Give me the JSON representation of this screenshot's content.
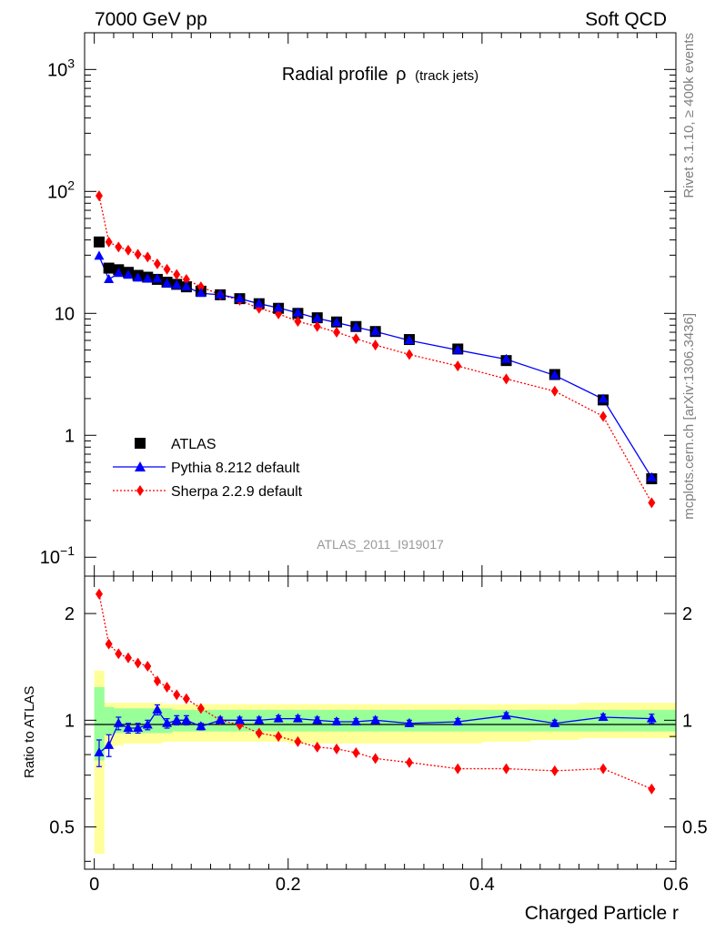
{
  "header": {
    "energy_label": "7000 GeV pp",
    "category_label": "Soft QCD"
  },
  "side_text": {
    "rivet": "Rivet 3.1.10, ≥ 400k events",
    "source": "mcplots.cern.ch [arXiv:1306.3436]"
  },
  "colors": {
    "atlas": "#000000",
    "pythia": "#0000ff",
    "sherpa": "#ff0000",
    "band_stat": "#99ff99",
    "band_total": "#ffff99",
    "analysis_tag": "#999999"
  },
  "chart_data": [
    {
      "type": "line",
      "title": "Radial profile",
      "title_symbol": "ρ",
      "title_suffix": "(track jets)",
      "analysis_tag": "ATLAS_2011_I919017",
      "yscale": "log",
      "xlim": [
        -0.01,
        0.6
      ],
      "ylim": [
        0.07,
        2000
      ],
      "y_ticks": [
        {
          "value": 0.1,
          "base": "10",
          "exp": "−1"
        },
        {
          "value": 1,
          "base": "1",
          "exp": ""
        },
        {
          "value": 10,
          "base": "10",
          "exp": ""
        },
        {
          "value": 100,
          "base": "10",
          "exp": "2"
        },
        {
          "value": 1000,
          "base": "10",
          "exp": "3"
        }
      ],
      "legend_position": "lower-left",
      "x": [
        0.005,
        0.015,
        0.025,
        0.035,
        0.045,
        0.055,
        0.065,
        0.075,
        0.085,
        0.095,
        0.11,
        0.13,
        0.15,
        0.17,
        0.19,
        0.21,
        0.23,
        0.25,
        0.27,
        0.29,
        0.325,
        0.375,
        0.425,
        0.475,
        0.525,
        0.575
      ],
      "series": [
        {
          "name": "ATLAS",
          "marker": "square",
          "values": [
            38.5,
            23.5,
            22.8,
            21.7,
            20.5,
            19.8,
            19.0,
            18.0,
            17.3,
            16.5,
            15.2,
            14.2,
            13.2,
            12.0,
            11.0,
            10.0,
            9.2,
            8.5,
            7.8,
            7.1,
            6.1,
            5.1,
            4.1,
            3.15,
            1.95,
            0.44
          ]
        },
        {
          "name": "Pythia 8.212 default",
          "marker": "triangle",
          "values": [
            29.5,
            19.0,
            21.3,
            20.6,
            19.5,
            19.2,
            19.2,
            17.5,
            17.0,
            16.5,
            14.6,
            14.2,
            13.2,
            12.0,
            11.1,
            10.1,
            9.1,
            8.4,
            7.7,
            7.1,
            6.0,
            5.0,
            4.2,
            3.1,
            1.98,
            0.45
          ]
        },
        {
          "name": "Sherpa 2.2.9 default",
          "marker": "diamond",
          "values": [
            92.0,
            38.5,
            35.0,
            33.0,
            30.5,
            29.0,
            25.5,
            23.0,
            20.8,
            19.0,
            16.5,
            14.2,
            12.8,
            11.0,
            9.9,
            8.6,
            7.8,
            7.0,
            6.2,
            5.5,
            4.6,
            3.7,
            2.9,
            2.3,
            1.43,
            0.28
          ]
        }
      ]
    },
    {
      "type": "line",
      "ylabel": "Ratio to ATLAS",
      "xlabel": "Charged Particle r",
      "yscale": "log",
      "xlim": [
        -0.01,
        0.6
      ],
      "ylim": [
        0.38,
        2.55
      ],
      "y_ticks": [
        0.5,
        1,
        2
      ],
      "y_tick_labels": [
        "0.5",
        "1",
        "2"
      ],
      "x_ticks": [
        0,
        0.2,
        0.4,
        0.6
      ],
      "x_tick_labels": [
        "0",
        "0.2",
        "0.4",
        "0.6"
      ],
      "bin_edges": [
        0.0,
        0.01,
        0.02,
        0.03,
        0.04,
        0.05,
        0.06,
        0.07,
        0.08,
        0.09,
        0.1,
        0.12,
        0.14,
        0.16,
        0.18,
        0.2,
        0.22,
        0.24,
        0.26,
        0.28,
        0.3,
        0.35,
        0.4,
        0.45,
        0.5,
        0.55,
        0.6
      ],
      "stat_band": [
        [
          0.77,
          1.24
        ],
        [
          0.91,
          1.09
        ],
        [
          0.92,
          1.08
        ],
        [
          0.92,
          1.08
        ],
        [
          0.92,
          1.08
        ],
        [
          0.92,
          1.08
        ],
        [
          0.92,
          1.08
        ],
        [
          0.92,
          1.08
        ],
        [
          0.93,
          1.07
        ],
        [
          0.93,
          1.07
        ],
        [
          0.93,
          1.07
        ],
        [
          0.93,
          1.07
        ],
        [
          0.93,
          1.07
        ],
        [
          0.93,
          1.07
        ],
        [
          0.93,
          1.07
        ],
        [
          0.93,
          1.07
        ],
        [
          0.93,
          1.07
        ],
        [
          0.93,
          1.07
        ],
        [
          0.93,
          1.07
        ],
        [
          0.93,
          1.07
        ],
        [
          0.93,
          1.07
        ],
        [
          0.93,
          1.07
        ],
        [
          0.93,
          1.07
        ],
        [
          0.93,
          1.07
        ],
        [
          0.93,
          1.07
        ],
        [
          0.93,
          1.07
        ]
      ],
      "total_band": [
        [
          0.42,
          1.38
        ],
        [
          0.84,
          1.12
        ],
        [
          0.85,
          1.12
        ],
        [
          0.86,
          1.12
        ],
        [
          0.86,
          1.12
        ],
        [
          0.86,
          1.12
        ],
        [
          0.86,
          1.12
        ],
        [
          0.87,
          1.11
        ],
        [
          0.87,
          1.11
        ],
        [
          0.87,
          1.11
        ],
        [
          0.87,
          1.11
        ],
        [
          0.87,
          1.11
        ],
        [
          0.87,
          1.11
        ],
        [
          0.87,
          1.11
        ],
        [
          0.87,
          1.11
        ],
        [
          0.86,
          1.11
        ],
        [
          0.86,
          1.11
        ],
        [
          0.86,
          1.11
        ],
        [
          0.86,
          1.11
        ],
        [
          0.86,
          1.11
        ],
        [
          0.86,
          1.11
        ],
        [
          0.86,
          1.11
        ],
        [
          0.87,
          1.11
        ],
        [
          0.88,
          1.11
        ],
        [
          0.89,
          1.12
        ],
        [
          0.89,
          1.12
        ]
      ],
      "series": [
        {
          "name": "Pythia 8.212 default",
          "marker": "triangle",
          "values": [
            0.81,
            0.85,
            0.98,
            0.95,
            0.95,
            0.97,
            1.07,
            0.98,
            1.0,
            1.0,
            0.96,
            1.0,
            1.0,
            1.0,
            1.01,
            1.01,
            1.0,
            0.99,
            0.99,
            1.0,
            0.98,
            0.99,
            1.03,
            0.98,
            1.02,
            1.01
          ],
          "errors": [
            0.07,
            0.06,
            0.04,
            0.03,
            0.03,
            0.03,
            0.035,
            0.03,
            0.03,
            0.03,
            0.02,
            0.02,
            0.02,
            0.02,
            0.02,
            0.02,
            0.02,
            0.02,
            0.02,
            0.02,
            0.02,
            0.02,
            0.02,
            0.02,
            0.02,
            0.03
          ]
        },
        {
          "name": "Sherpa 2.2.9 default",
          "marker": "diamond",
          "values": [
            2.27,
            1.64,
            1.54,
            1.5,
            1.45,
            1.42,
            1.29,
            1.24,
            1.18,
            1.15,
            1.08,
            1.0,
            0.97,
            0.92,
            0.9,
            0.87,
            0.84,
            0.83,
            0.81,
            0.78,
            0.76,
            0.73,
            0.73,
            0.72,
            0.73,
            0.64
          ]
        }
      ]
    }
  ]
}
